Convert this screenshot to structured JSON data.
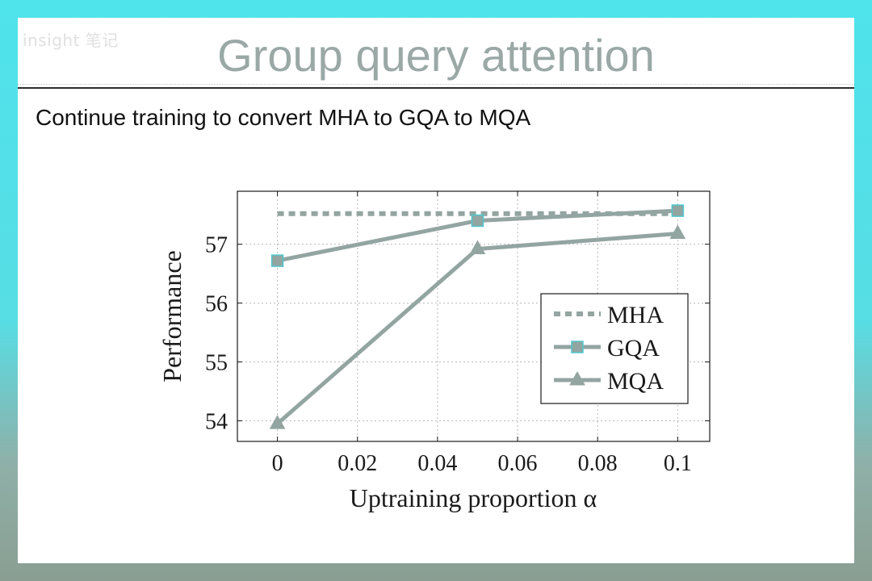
{
  "slide": {
    "logo_text": "insight 笔记",
    "title": "Group query attention",
    "subtitle": "Continue training to convert MHA to GQA to MQA"
  },
  "chart_data": {
    "type": "line",
    "xlabel": "Uptraining proportion α",
    "ylabel": "Performance",
    "xlim": [
      -0.01,
      0.108
    ],
    "ylim": [
      53.65,
      57.9
    ],
    "xticks": [
      0,
      0.02,
      0.04,
      0.06,
      0.08,
      0.1
    ],
    "xtick_labels": [
      "0",
      "0.02",
      "0.04",
      "0.06",
      "0.08",
      "0.1"
    ],
    "yticks": [
      54,
      55,
      56,
      57
    ],
    "ytick_labels": [
      "54",
      "55",
      "56",
      "57"
    ],
    "grid": true,
    "legend_position": "right",
    "series": [
      {
        "name": "MHA",
        "x": [
          0,
          0.05,
          0.1
        ],
        "y": [
          57.52,
          57.52,
          57.52
        ],
        "style": "dotted",
        "marker": "none",
        "color": "#93a5a1"
      },
      {
        "name": "GQA",
        "x": [
          0,
          0.05,
          0.1
        ],
        "y": [
          56.72,
          57.4,
          57.57
        ],
        "style": "solid",
        "marker": "square",
        "color": "#93a5a1"
      },
      {
        "name": "MQA",
        "x": [
          0,
          0.05,
          0.1
        ],
        "y": [
          53.95,
          56.92,
          57.18
        ],
        "style": "solid",
        "marker": "triangle",
        "color": "#93a5a1"
      }
    ]
  },
  "colors": {
    "series": "#93a5a1",
    "gqa_edge": "#4ec8cf",
    "title": "#9aa8a6",
    "background_teal": "#4fe3ec"
  }
}
